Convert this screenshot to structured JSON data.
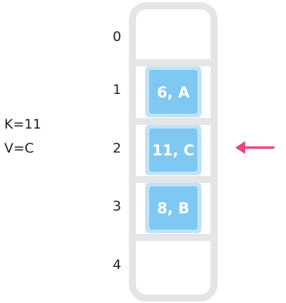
{
  "query": {
    "key_text": "K=11",
    "value_text": "V=C"
  },
  "slots": [
    {
      "index": "0",
      "entry": null
    },
    {
      "index": "1",
      "entry": "6, A"
    },
    {
      "index": "2",
      "entry": "11, C"
    },
    {
      "index": "3",
      "entry": "8, B"
    },
    {
      "index": "4",
      "entry": null
    }
  ],
  "pointer": {
    "target_index": 2,
    "color": "#e8457e"
  },
  "colors": {
    "frame": "#e5e5e5",
    "cell_fill": "#7ec8f2",
    "cell_halo": "#bfe3f8",
    "text": "#1f1f1f"
  }
}
